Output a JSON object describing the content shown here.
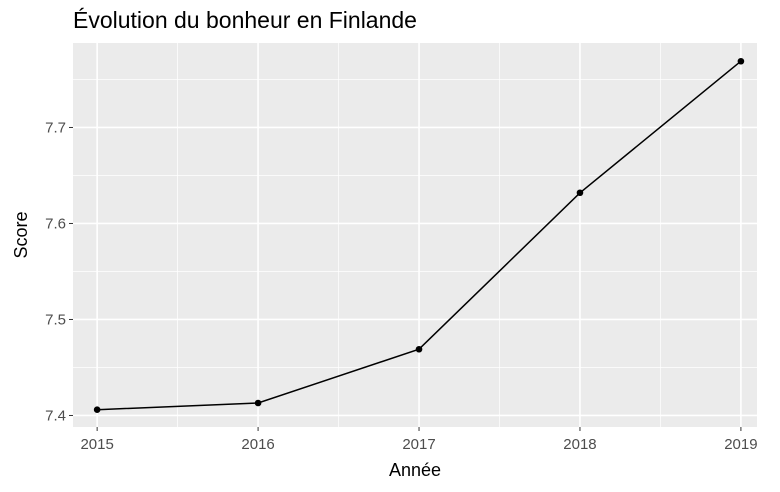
{
  "chart_data": {
    "type": "line",
    "title": "Évolution du bonheur en Finlande",
    "xlabel": "Année",
    "ylabel": "Score",
    "x": [
      2015,
      2016,
      2017,
      2018,
      2019
    ],
    "series": [
      {
        "values": [
          7.406,
          7.413,
          7.469,
          7.632,
          7.769
        ]
      }
    ],
    "xticks": [
      "2015",
      "2016",
      "2017",
      "2018",
      "2019"
    ],
    "yticks": [
      "7.4",
      "7.5",
      "7.6",
      "7.7"
    ],
    "xlim": [
      2014.85,
      2019.1
    ],
    "ylim": [
      7.388,
      7.788
    ],
    "grid": true,
    "legend": "none",
    "colors": {
      "panel": "#ebebeb",
      "grid": "#ffffff",
      "line": "#000000",
      "tick_text": "#4d4d4d"
    }
  }
}
